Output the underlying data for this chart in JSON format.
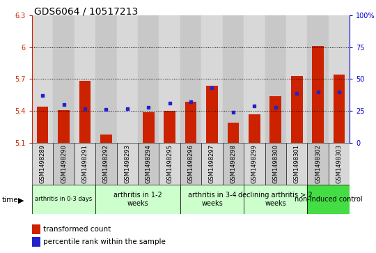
{
  "title": "GDS6064 / 10517213",
  "samples": [
    "GSM1498289",
    "GSM1498290",
    "GSM1498291",
    "GSM1498292",
    "GSM1498293",
    "GSM1498294",
    "GSM1498295",
    "GSM1498296",
    "GSM1498297",
    "GSM1498298",
    "GSM1498299",
    "GSM1498300",
    "GSM1498301",
    "GSM1498302",
    "GSM1498303"
  ],
  "transformed_count": [
    5.44,
    5.41,
    5.68,
    5.18,
    5.1,
    5.39,
    5.4,
    5.49,
    5.64,
    5.29,
    5.37,
    5.54,
    5.73,
    6.01,
    5.74
  ],
  "percentile_rank": [
    37,
    30,
    27,
    26,
    27,
    28,
    31,
    32,
    43,
    24,
    29,
    28,
    39,
    40,
    40
  ],
  "ylim_left": [
    5.1,
    6.3
  ],
  "ylim_right": [
    0,
    100
  ],
  "yticks_left": [
    5.1,
    5.4,
    5.7,
    6.0,
    6.3
  ],
  "yticks_right": [
    0,
    25,
    50,
    75,
    100
  ],
  "ytick_labels_left": [
    "5.1",
    "5.4",
    "5.7",
    "6",
    "6.3"
  ],
  "ytick_labels_right": [
    "0",
    "25",
    "50",
    "75",
    "100%"
  ],
  "dotted_lines": [
    5.4,
    5.7,
    6.0
  ],
  "bar_color": "#cc2200",
  "marker_color": "#2222cc",
  "group_spans": [
    {
      "label": "arthritis in 0-3 days",
      "start": 0,
      "end": 3,
      "color": "#ccffcc",
      "small": true
    },
    {
      "label": "arthritis in 1-2\nweeks",
      "start": 3,
      "end": 7,
      "color": "#ccffcc",
      "small": false
    },
    {
      "label": "arthritis in 3-4\nweeks",
      "start": 7,
      "end": 10,
      "color": "#ccffcc",
      "small": false
    },
    {
      "label": "declining arthritis > 2\nweeks",
      "start": 10,
      "end": 13,
      "color": "#ccffcc",
      "small": false
    },
    {
      "label": "non-induced control",
      "start": 13,
      "end": 15,
      "color": "#44dd44",
      "small": false
    }
  ],
  "col_color_even": "#d8d8d8",
  "col_color_odd": "#c8c8c8",
  "bar_width": 0.55,
  "background_color": "#ffffff",
  "tick_color_left": "#cc2200",
  "tick_color_right": "#0000cc",
  "title_fontsize": 10,
  "tick_fontsize": 7,
  "gsm_fontsize": 6
}
